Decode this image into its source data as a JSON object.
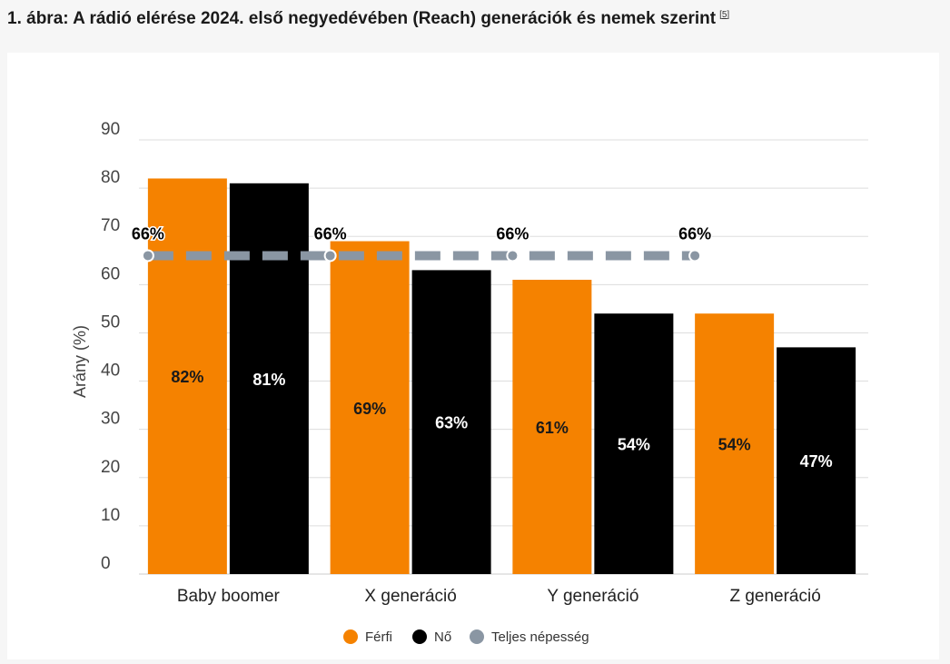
{
  "page": {
    "title": "1. ábra: A rádió elérése 2024. első negyedévében (Reach) generációk és nemek szerint",
    "reference": "[5]"
  },
  "colors": {
    "ferfi": "#f58200",
    "no": "#000000",
    "teljes": "#8a96a3",
    "grid": "#dddddd"
  },
  "chart_data": {
    "type": "bar",
    "title": "",
    "xlabel": "",
    "ylabel": "Arány (%)",
    "ylim": [
      0,
      90
    ],
    "yticks": [
      0,
      10,
      20,
      30,
      40,
      50,
      60,
      70,
      80,
      90
    ],
    "grid": true,
    "legend_position": "bottom",
    "categories": [
      "Baby boomer",
      "X generáció",
      "Y generáció",
      "Z generáció"
    ],
    "series": [
      {
        "name": "Férfi",
        "type": "bar",
        "values": [
          82,
          69,
          61,
          54
        ],
        "labels": [
          "82%",
          "69%",
          "61%",
          "54%"
        ]
      },
      {
        "name": "Nő",
        "type": "bar",
        "values": [
          81,
          63,
          54,
          47
        ],
        "labels": [
          "81%",
          "63%",
          "54%",
          "47%"
        ]
      },
      {
        "name": "Teljes népesség",
        "type": "line",
        "style": "dashed",
        "values": [
          66,
          66,
          66,
          66
        ],
        "labels": [
          "66%",
          "66%",
          "66%",
          "66%"
        ]
      }
    ]
  }
}
